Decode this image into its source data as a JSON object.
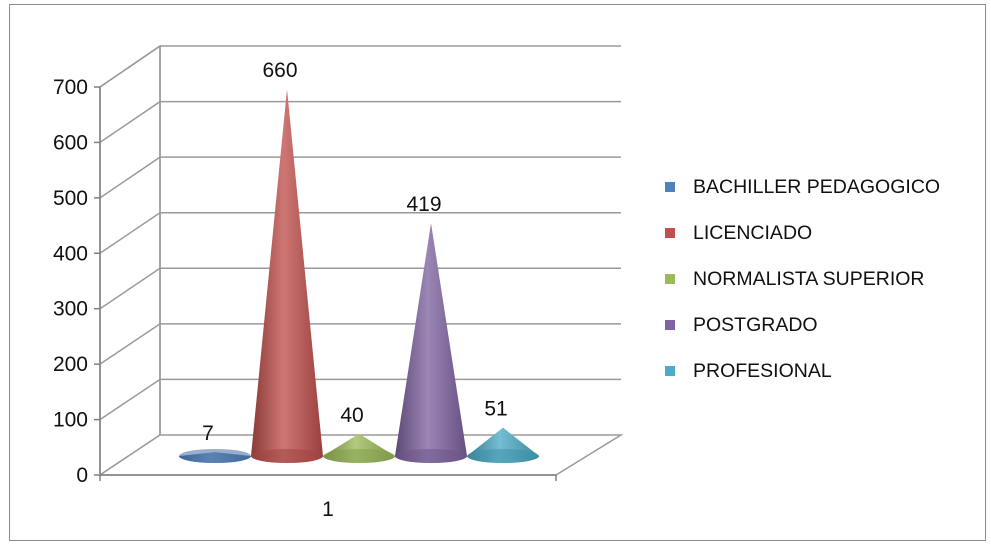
{
  "chart_data": {
    "type": "bar",
    "style": "3d-cone",
    "categories": [
      "1"
    ],
    "series": [
      {
        "name": "BACHILLER PEDAGOGICO",
        "values": [
          7
        ],
        "color": "#4f81bd"
      },
      {
        "name": "LICENCIADO",
        "values": [
          660
        ],
        "color": "#c0504d"
      },
      {
        "name": "NORMALISTA SUPERIOR",
        "values": [
          40
        ],
        "color": "#9bbb59"
      },
      {
        "name": "POSTGRADO",
        "values": [
          419
        ],
        "color": "#8064a2"
      },
      {
        "name": "PROFESIONAL",
        "values": [
          51
        ],
        "color": "#4bacc6"
      }
    ],
    "yticks": [
      "0",
      "100",
      "200",
      "300",
      "400",
      "500",
      "600",
      "700"
    ],
    "ylim": [
      0,
      700
    ],
    "data_labels": [
      "7",
      "660",
      "40",
      "419",
      "51"
    ],
    "grid": true,
    "legend": "right"
  }
}
